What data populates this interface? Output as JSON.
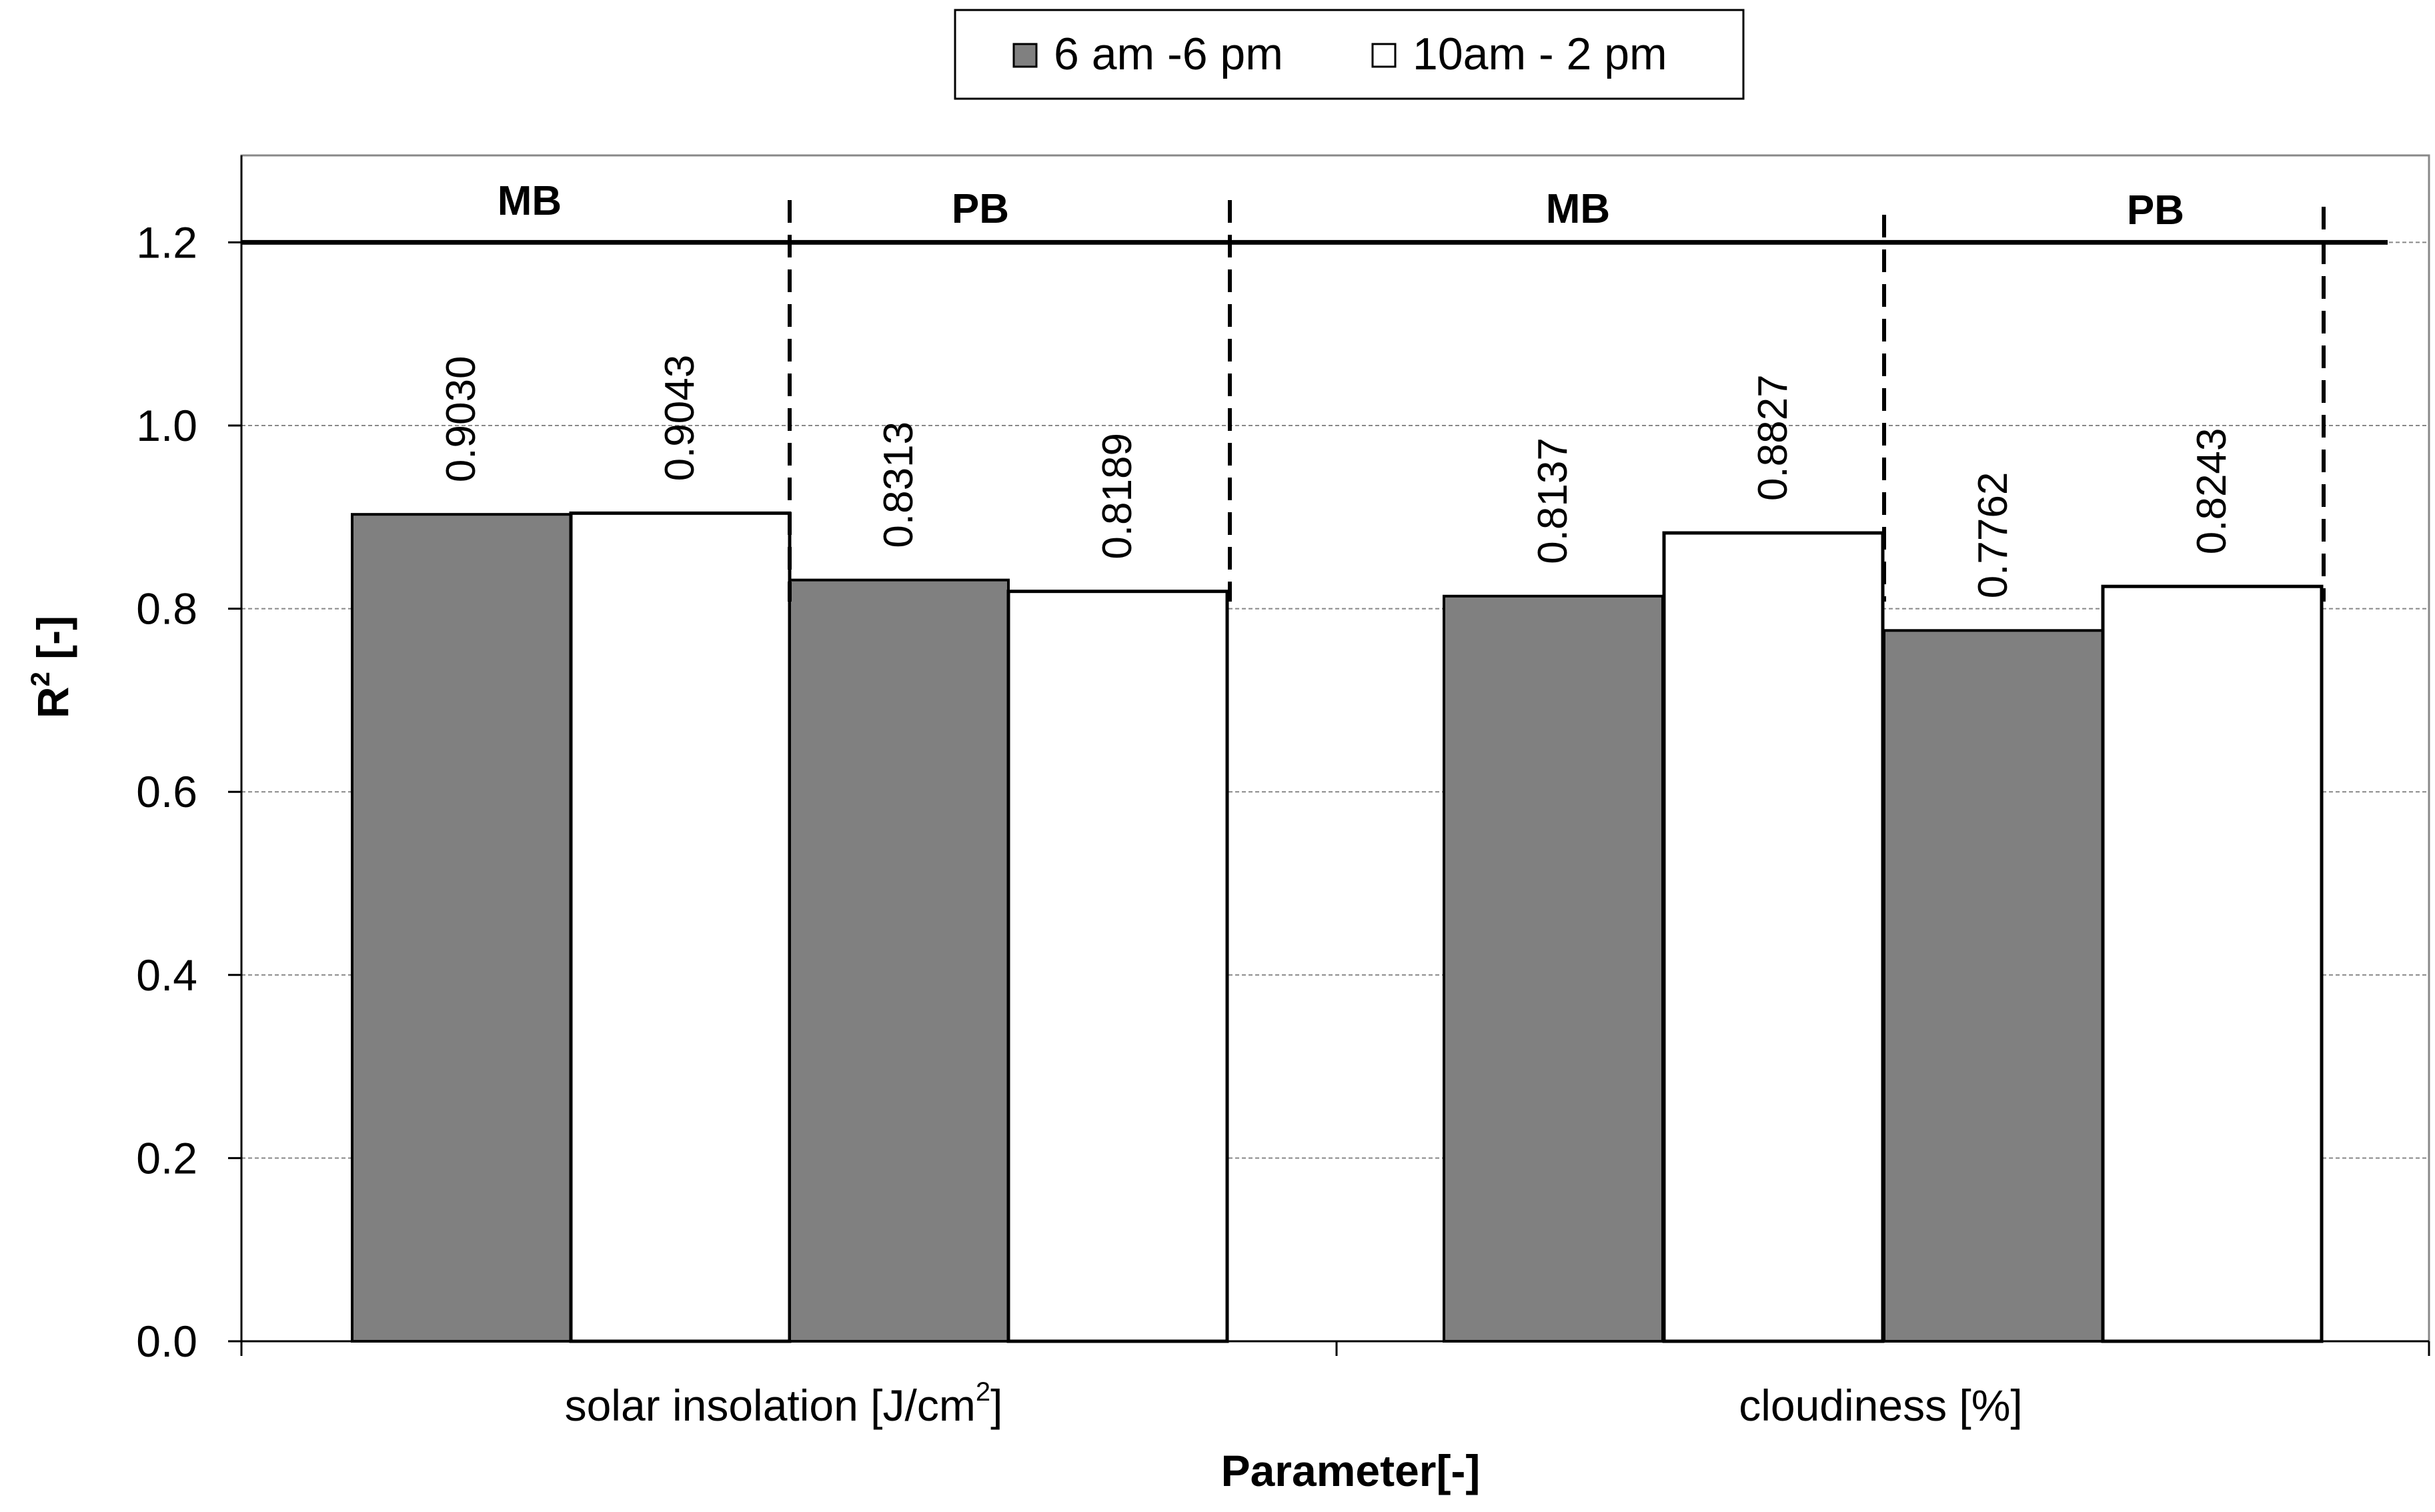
{
  "chart_data": {
    "type": "bar",
    "title": "",
    "xlabel": "Parameter[-]",
    "ylabel_main": "R",
    "ylabel_sup": "2",
    "ylabel_rest": " [-]",
    "ylim": [
      0,
      1.3
    ],
    "yticks": [
      0.0,
      0.2,
      0.4,
      0.6,
      0.8,
      1.0,
      1.2
    ],
    "ytick_labels": [
      "0.0",
      "0.2",
      "0.4",
      "0.6",
      "0.8",
      "1.0",
      "1.2"
    ],
    "grid": true,
    "legend_position": "top-center",
    "categories": [
      {
        "label_main": "solar insolation [J/cm",
        "label_sup": "2",
        "label_end": "]"
      },
      {
        "label_main": "cloudiness [%]",
        "label_sup": "",
        "label_end": ""
      }
    ],
    "series": [
      {
        "name": "6 am -6 pm",
        "color": "#808080"
      },
      {
        "name": "10am - 2 pm",
        "color": "#ffffff"
      }
    ],
    "bars": [
      {
        "category": 0,
        "group": "MB",
        "series": 0,
        "value": 0.903,
        "label": "0.9030"
      },
      {
        "category": 0,
        "group": "MB",
        "series": 1,
        "value": 0.9043,
        "label": "0.9043"
      },
      {
        "category": 0,
        "group": "PB",
        "series": 0,
        "value": 0.8313,
        "label": "0.8313"
      },
      {
        "category": 0,
        "group": "PB",
        "series": 1,
        "value": 0.8189,
        "label": "0.8189"
      },
      {
        "category": 1,
        "group": "MB",
        "series": 0,
        "value": 0.8137,
        "label": "0.8137"
      },
      {
        "category": 1,
        "group": "MB",
        "series": 1,
        "value": 0.8827,
        "label": "0.8827"
      },
      {
        "category": 1,
        "group": "PB",
        "series": 0,
        "value": 0.7762,
        "label": "0.7762"
      },
      {
        "category": 1,
        "group": "PB",
        "series": 1,
        "value": 0.8243,
        "label": "0.8243"
      }
    ],
    "group_labels": [
      "MB",
      "PB",
      "MB",
      "PB"
    ],
    "reference_line_value": 1.2
  }
}
